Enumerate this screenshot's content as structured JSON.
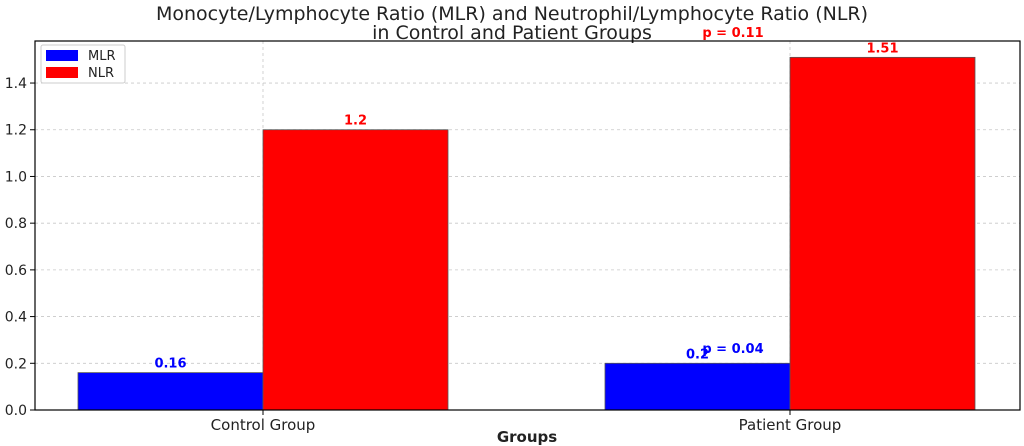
{
  "chart_data": {
    "type": "bar",
    "title_line1": "Monocyte/Lymphocyte Ratio (MLR) and Neutrophil/Lymphocyte Ratio (NLR)",
    "title_line2": "in Control and Patient Groups",
    "xlabel": "Groups",
    "ylabel": "",
    "categories": [
      "Control Group",
      "Patient Group"
    ],
    "series": [
      {
        "name": "MLR",
        "color": "#0000ff",
        "label_color": "#0000ff",
        "values": [
          0.16,
          0.2
        ],
        "labels": [
          "0.16",
          "0.2"
        ]
      },
      {
        "name": "NLR",
        "color": "#ff0000",
        "label_color": "#ff0000",
        "values": [
          1.2,
          1.51
        ],
        "labels": [
          "1.2",
          "1.51"
        ]
      }
    ],
    "ylim": [
      0,
      1.58
    ],
    "yticks": [
      0.0,
      0.2,
      0.4,
      0.6,
      0.8,
      1.0,
      1.2,
      1.4
    ],
    "ytick_labels": [
      "0.0",
      "0.2",
      "0.4",
      "0.6",
      "0.8",
      "1.0",
      "1.2",
      "1.4"
    ],
    "grid": true,
    "legend_position": "top-left",
    "annotations": [
      {
        "text": "p = 0.04",
        "color": "#0000ff",
        "category": "Patient Group",
        "series": "MLR"
      },
      {
        "text": "p = 0.11",
        "color": "#ff0000",
        "category": "Patient Group",
        "series": "NLR"
      }
    ]
  }
}
